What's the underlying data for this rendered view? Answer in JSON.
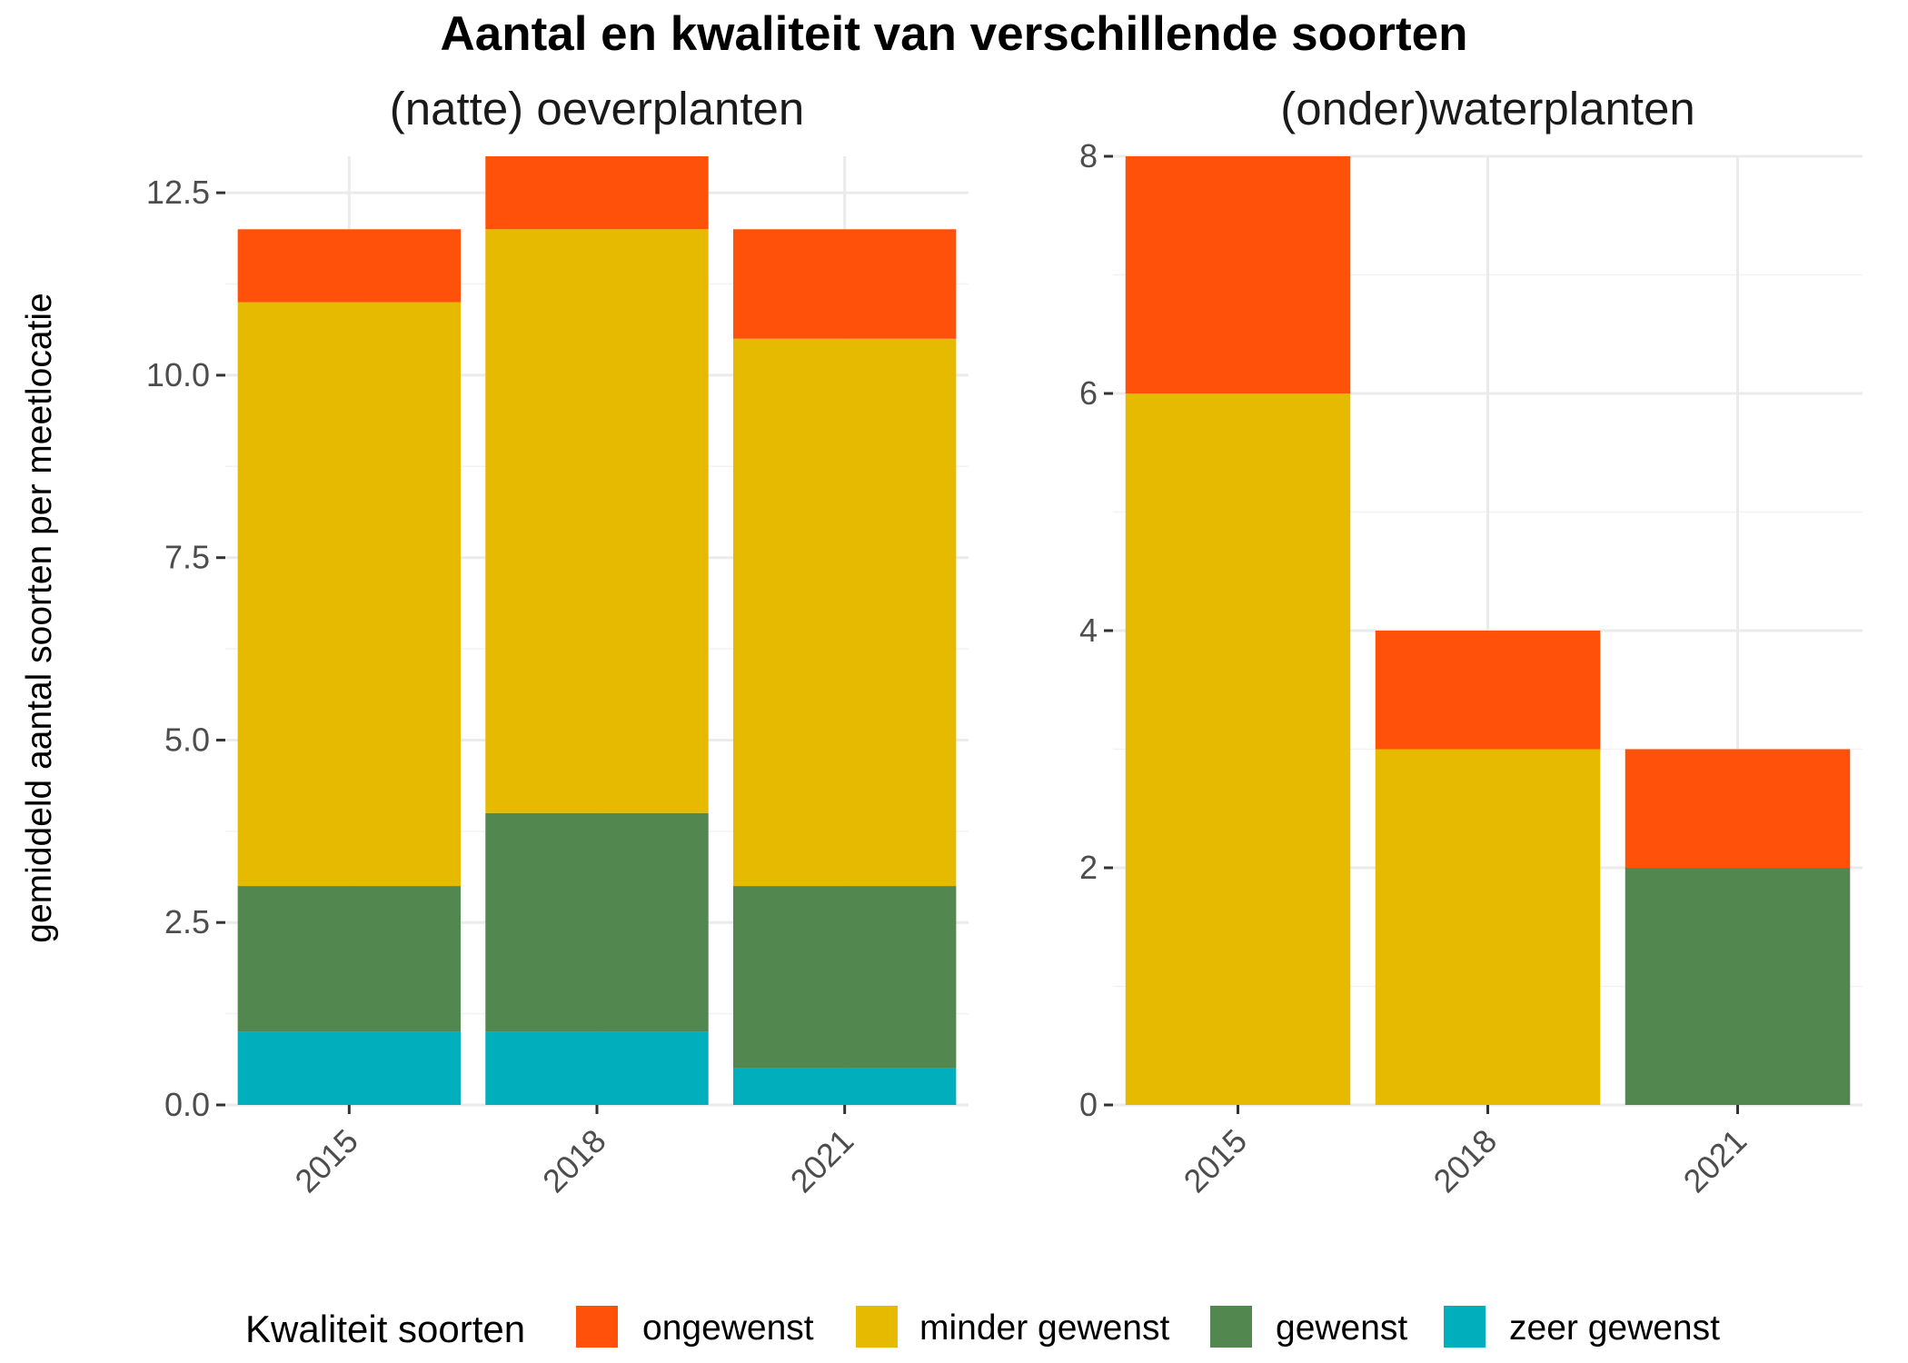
{
  "title": "Aantal en kwaliteit van verschillende soorten",
  "ylabel": "gemiddeld aantal soorten per meetlocatie",
  "legend": {
    "title": "Kwaliteit soorten",
    "position": "bottom"
  },
  "chart_data": {
    "type": "bar",
    "stacked": true,
    "grid": true,
    "colors": {
      "ongewenst": "#FF5109",
      "minder gewenst": "#E5BA00",
      "gewenst": "#52874F",
      "zeer gewenst": "#00AEBC"
    },
    "stack_order_bottom_to_top": [
      "zeer gewenst",
      "gewenst",
      "minder gewenst",
      "ongewenst"
    ],
    "legend_order": [
      "ongewenst",
      "minder gewenst",
      "gewenst",
      "zeer gewenst"
    ],
    "panels": [
      {
        "title": "(natte) oeverplanten",
        "categories": [
          "2015",
          "2018",
          "2021"
        ],
        "ylim": [
          0,
          13
        ],
        "yticks": [
          0,
          2.5,
          5,
          7.5,
          10,
          12.5
        ],
        "ytick_labels": [
          "0.0",
          "2.5",
          "5.0",
          "7.5",
          "10.0",
          "12.5"
        ],
        "series": [
          {
            "name": "zeer gewenst",
            "values": [
              1,
              1,
              0.5
            ]
          },
          {
            "name": "gewenst",
            "values": [
              2,
              3,
              2.5
            ]
          },
          {
            "name": "minder gewenst",
            "values": [
              8,
              8,
              7.5
            ]
          },
          {
            "name": "ongewenst",
            "values": [
              1,
              1,
              1.5
            ]
          }
        ]
      },
      {
        "title": "(onder)waterplanten",
        "categories": [
          "2015",
          "2018",
          "2021"
        ],
        "ylim": [
          0,
          8
        ],
        "yticks": [
          0,
          2,
          4,
          6,
          8
        ],
        "ytick_labels": [
          "0",
          "2",
          "4",
          "6",
          "8"
        ],
        "series": [
          {
            "name": "zeer gewenst",
            "values": [
              0,
              0,
              0
            ]
          },
          {
            "name": "gewenst",
            "values": [
              0,
              0,
              2
            ]
          },
          {
            "name": "minder gewenst",
            "values": [
              6,
              3,
              0
            ]
          },
          {
            "name": "ongewenst",
            "values": [
              2,
              1,
              1
            ]
          }
        ]
      }
    ]
  }
}
